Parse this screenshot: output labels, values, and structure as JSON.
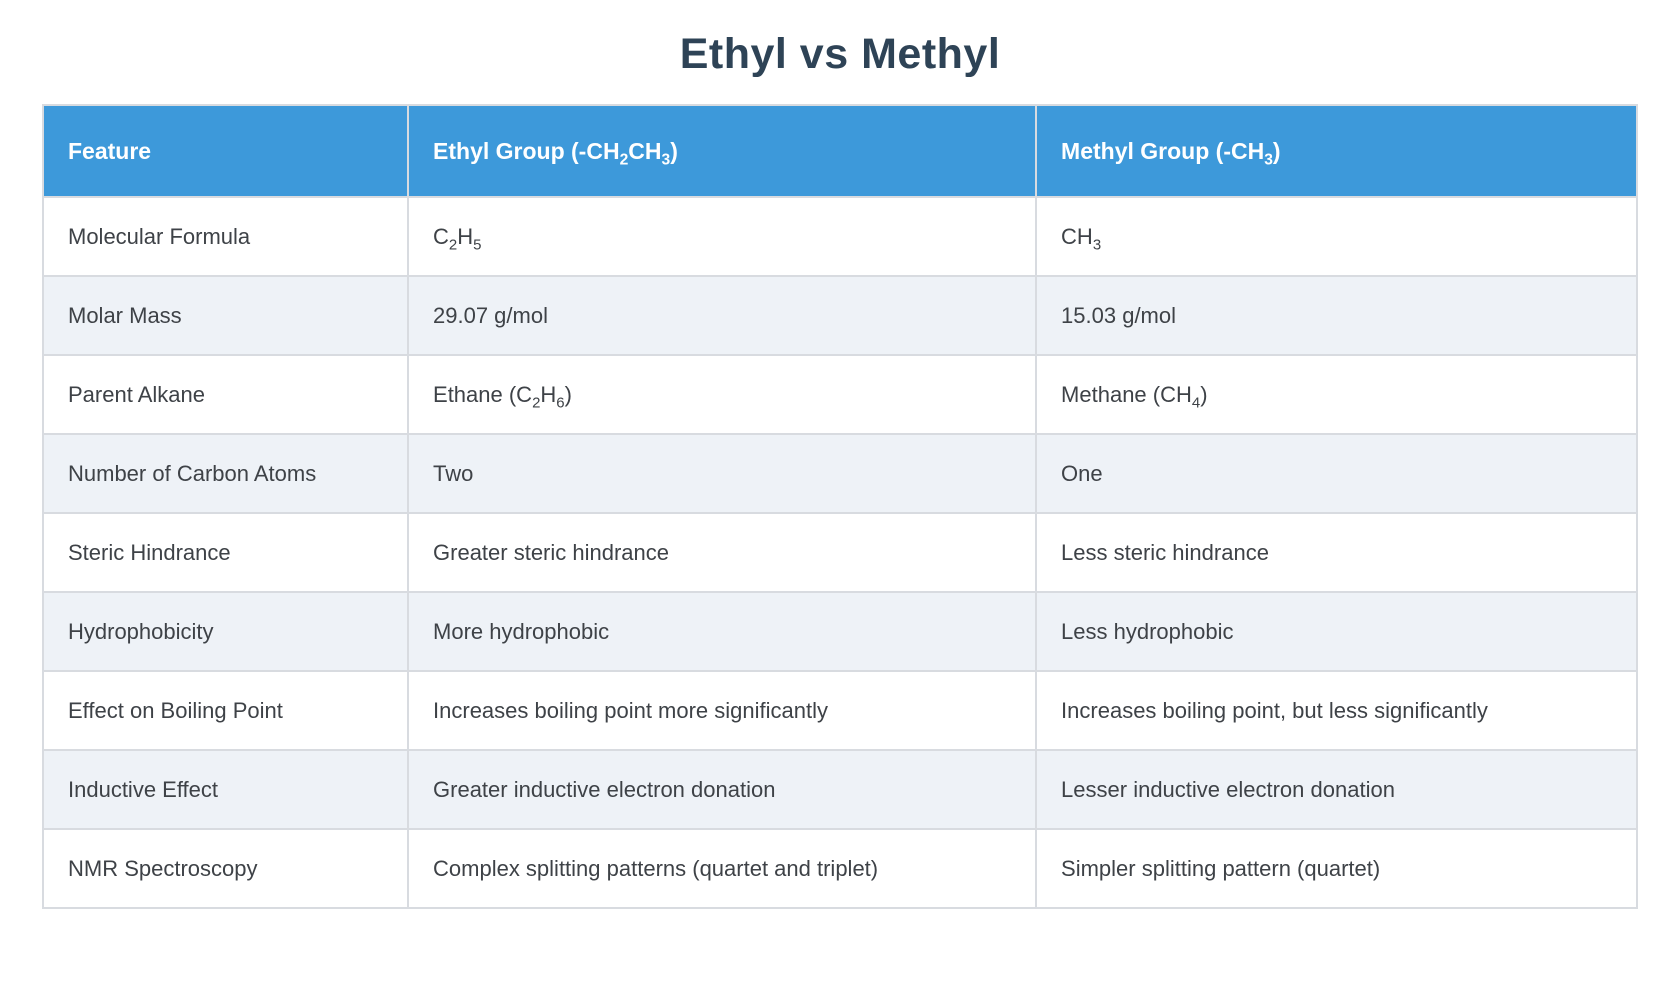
{
  "page": {
    "title": "Ethyl vs Methyl",
    "background": "#ffffff"
  },
  "colors": {
    "header_bg": "#3d99da",
    "header_text": "#ffffff",
    "row_odd_bg": "#ffffff",
    "row_even_bg": "#eef2f7",
    "cell_border": "#d8dbe0",
    "body_text": "#3e4247",
    "title_text": "#2e4356"
  },
  "table": {
    "columns": [
      {
        "id": "feature",
        "label_segments": [
          {
            "text": "Feature"
          }
        ]
      },
      {
        "id": "ethyl",
        "label_segments": [
          {
            "text": "Ethyl Group (-CH"
          },
          {
            "text": "2",
            "sub": true
          },
          {
            "text": "CH"
          },
          {
            "text": "3",
            "sub": true
          },
          {
            "text": ")"
          }
        ]
      },
      {
        "id": "methyl",
        "label_segments": [
          {
            "text": "Methyl Group (-CH"
          },
          {
            "text": "3",
            "sub": true
          },
          {
            "text": ")"
          }
        ]
      }
    ],
    "rows": [
      {
        "feature": [
          {
            "text": "Molecular Formula"
          }
        ],
        "ethyl": [
          {
            "text": "C"
          },
          {
            "text": "2",
            "sub": true
          },
          {
            "text": "H"
          },
          {
            "text": "5",
            "sub": true
          }
        ],
        "methyl": [
          {
            "text": "CH"
          },
          {
            "text": "3",
            "sub": true
          }
        ]
      },
      {
        "feature": [
          {
            "text": "Molar Mass"
          }
        ],
        "ethyl": [
          {
            "text": "29.07 g/mol"
          }
        ],
        "methyl": [
          {
            "text": "15.03 g/mol"
          }
        ]
      },
      {
        "feature": [
          {
            "text": "Parent Alkane"
          }
        ],
        "ethyl": [
          {
            "text": "Ethane (C"
          },
          {
            "text": "2",
            "sub": true
          },
          {
            "text": "H"
          },
          {
            "text": "6",
            "sub": true
          },
          {
            "text": ")"
          }
        ],
        "methyl": [
          {
            "text": "Methane (CH"
          },
          {
            "text": "4",
            "sub": true
          },
          {
            "text": ")"
          }
        ]
      },
      {
        "feature": [
          {
            "text": "Number of Carbon Atoms"
          }
        ],
        "ethyl": [
          {
            "text": "Two"
          }
        ],
        "methyl": [
          {
            "text": "One"
          }
        ]
      },
      {
        "feature": [
          {
            "text": "Steric Hindrance"
          }
        ],
        "ethyl": [
          {
            "text": "Greater steric hindrance"
          }
        ],
        "methyl": [
          {
            "text": "Less steric hindrance"
          }
        ]
      },
      {
        "feature": [
          {
            "text": "Hydrophobicity"
          }
        ],
        "ethyl": [
          {
            "text": "More hydrophobic"
          }
        ],
        "methyl": [
          {
            "text": "Less hydrophobic"
          }
        ]
      },
      {
        "feature": [
          {
            "text": "Effect on Boiling Point"
          }
        ],
        "ethyl": [
          {
            "text": "Increases boiling point more significantly"
          }
        ],
        "methyl": [
          {
            "text": "Increases boiling point, but less significantly"
          }
        ]
      },
      {
        "feature": [
          {
            "text": "Inductive Effect"
          }
        ],
        "ethyl": [
          {
            "text": "Greater inductive electron donation"
          }
        ],
        "methyl": [
          {
            "text": "Lesser inductive electron donation"
          }
        ]
      },
      {
        "feature": [
          {
            "text": "NMR Spectroscopy"
          }
        ],
        "ethyl": [
          {
            "text": "Complex splitting patterns (quartet and triplet)"
          }
        ],
        "methyl": [
          {
            "text": "Simpler splitting pattern (quartet)"
          }
        ]
      }
    ]
  }
}
